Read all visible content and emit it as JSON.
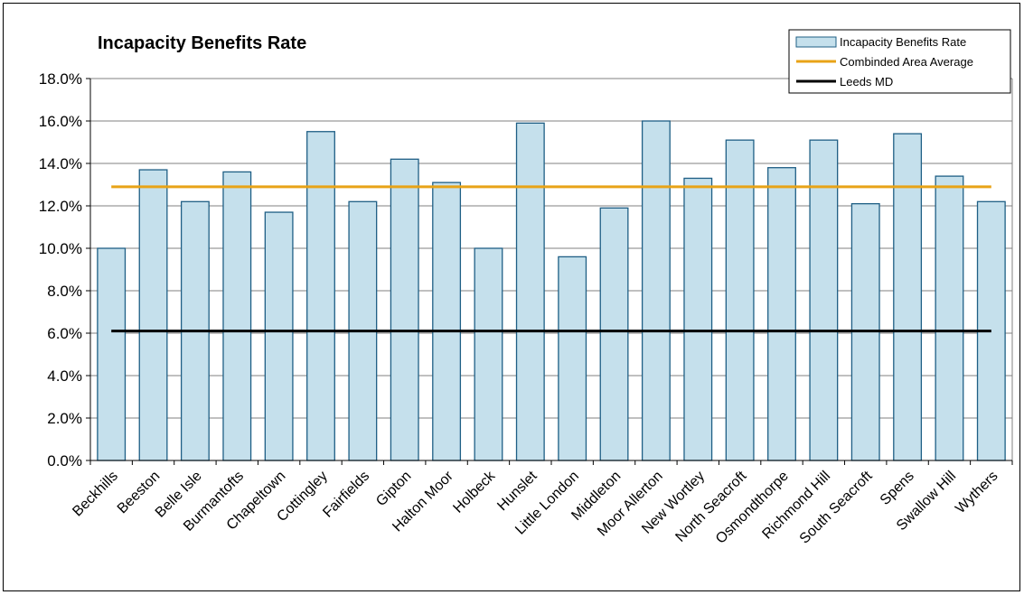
{
  "chart_data": {
    "type": "bar",
    "title": "Incapacity Benefits Rate",
    "xlabel": "",
    "ylabel": "",
    "ylim": [
      0,
      0.18
    ],
    "y_ticks": [
      0,
      0.02,
      0.04,
      0.06,
      0.08,
      0.1,
      0.12,
      0.14,
      0.16,
      0.18
    ],
    "y_tick_labels": [
      "0.0%",
      "2.0%",
      "4.0%",
      "6.0%",
      "8.0%",
      "10.0%",
      "12.0%",
      "14.0%",
      "16.0%",
      "18.0%"
    ],
    "grid": true,
    "legend_position": "top-right",
    "categories": [
      "Beckhills",
      "Beeston",
      "Belle Isle",
      "Burmantofts",
      "Chapeltown",
      "Cottingley",
      "Fairfields",
      "Gipton",
      "Halton Moor",
      "Holbeck",
      "Hunslet",
      "Little London",
      "Middleton",
      "Moor Allerton",
      "New Wortley",
      "North Seacroft",
      "Osmondthorpe",
      "Richmond Hill",
      "South Seacroft",
      "Spens",
      "Swallow Hill",
      "Wythers"
    ],
    "series": [
      {
        "name": "Incapacity Benefits Rate",
        "kind": "bar",
        "color": "#c5e0ec",
        "edge_color": "#1f5f85",
        "values": [
          0.1,
          0.137,
          0.122,
          0.136,
          0.117,
          0.155,
          0.122,
          0.142,
          0.131,
          0.1,
          0.159,
          0.096,
          0.119,
          0.16,
          0.133,
          0.151,
          0.138,
          0.151,
          0.121,
          0.154,
          0.134,
          0.122
        ]
      },
      {
        "name": "Combinded Area Average",
        "kind": "line",
        "color": "#e8a317",
        "value": 0.129
      },
      {
        "name": "Leeds MD",
        "kind": "line",
        "color": "#000000",
        "value": 0.061
      }
    ]
  }
}
